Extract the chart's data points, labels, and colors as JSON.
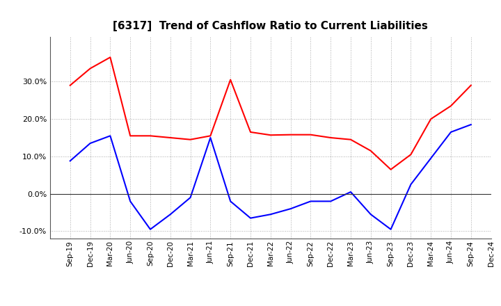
{
  "title": "[6317]  Trend of Cashflow Ratio to Current Liabilities",
  "x_labels": [
    "Sep-19",
    "Dec-19",
    "Mar-20",
    "Jun-20",
    "Sep-20",
    "Dec-20",
    "Mar-21",
    "Jun-21",
    "Sep-21",
    "Dec-21",
    "Mar-22",
    "Jun-22",
    "Sep-22",
    "Dec-22",
    "Mar-23",
    "Jun-23",
    "Sep-23",
    "Dec-23",
    "Mar-24",
    "Jun-24",
    "Sep-24",
    "Dec-24"
  ],
  "operating_cf": [
    0.29,
    0.335,
    0.365,
    0.155,
    0.155,
    0.15,
    0.145,
    0.155,
    0.305,
    0.165,
    0.157,
    0.158,
    0.158,
    0.15,
    0.145,
    0.115,
    0.065,
    0.105,
    0.2,
    0.235,
    0.29,
    null
  ],
  "free_cf": [
    0.088,
    0.135,
    0.155,
    -0.02,
    -0.095,
    -0.055,
    -0.01,
    0.15,
    -0.02,
    -0.065,
    -0.055,
    -0.04,
    -0.02,
    -0.02,
    0.005,
    -0.055,
    -0.095,
    0.025,
    0.095,
    0.165,
    0.185,
    null
  ],
  "operating_color": "#FF0000",
  "free_color": "#0000FF",
  "ylim": [
    -0.12,
    0.42
  ],
  "yticks": [
    -0.1,
    0.0,
    0.1,
    0.2,
    0.3
  ],
  "background_color": "#FFFFFF",
  "grid_color": "#AAAAAA"
}
